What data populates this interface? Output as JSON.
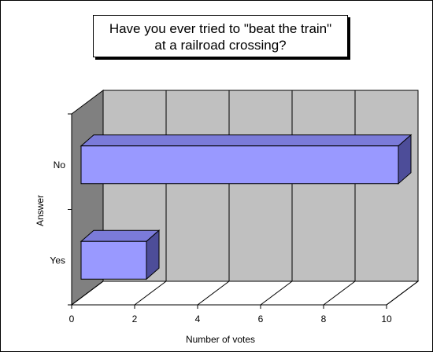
{
  "chart_data": {
    "type": "bar",
    "orientation": "horizontal",
    "three_d": true,
    "title_lines": [
      "Have you ever tried to \"beat the train\"",
      "at a railroad crossing?"
    ],
    "xlabel": "Number of votes",
    "ylabel": "Answer",
    "categories": [
      "Yes",
      "No"
    ],
    "values": [
      2.3,
      10.3
    ],
    "xlim": [
      0,
      10
    ],
    "xticks": [
      0,
      2,
      4,
      6,
      8,
      10
    ],
    "xtick_labels": [
      "0",
      "2",
      "4",
      "6",
      "8",
      "10"
    ],
    "grid": true,
    "legend": "none",
    "colors": {
      "bar_front": "#9999ff",
      "bar_top": "#7b7bd9",
      "bar_side": "#4d4d99",
      "back_wall": "#c0c0c0",
      "side_wall": "#808080",
      "floor": "#ffffff",
      "grid": "#000000"
    }
  }
}
